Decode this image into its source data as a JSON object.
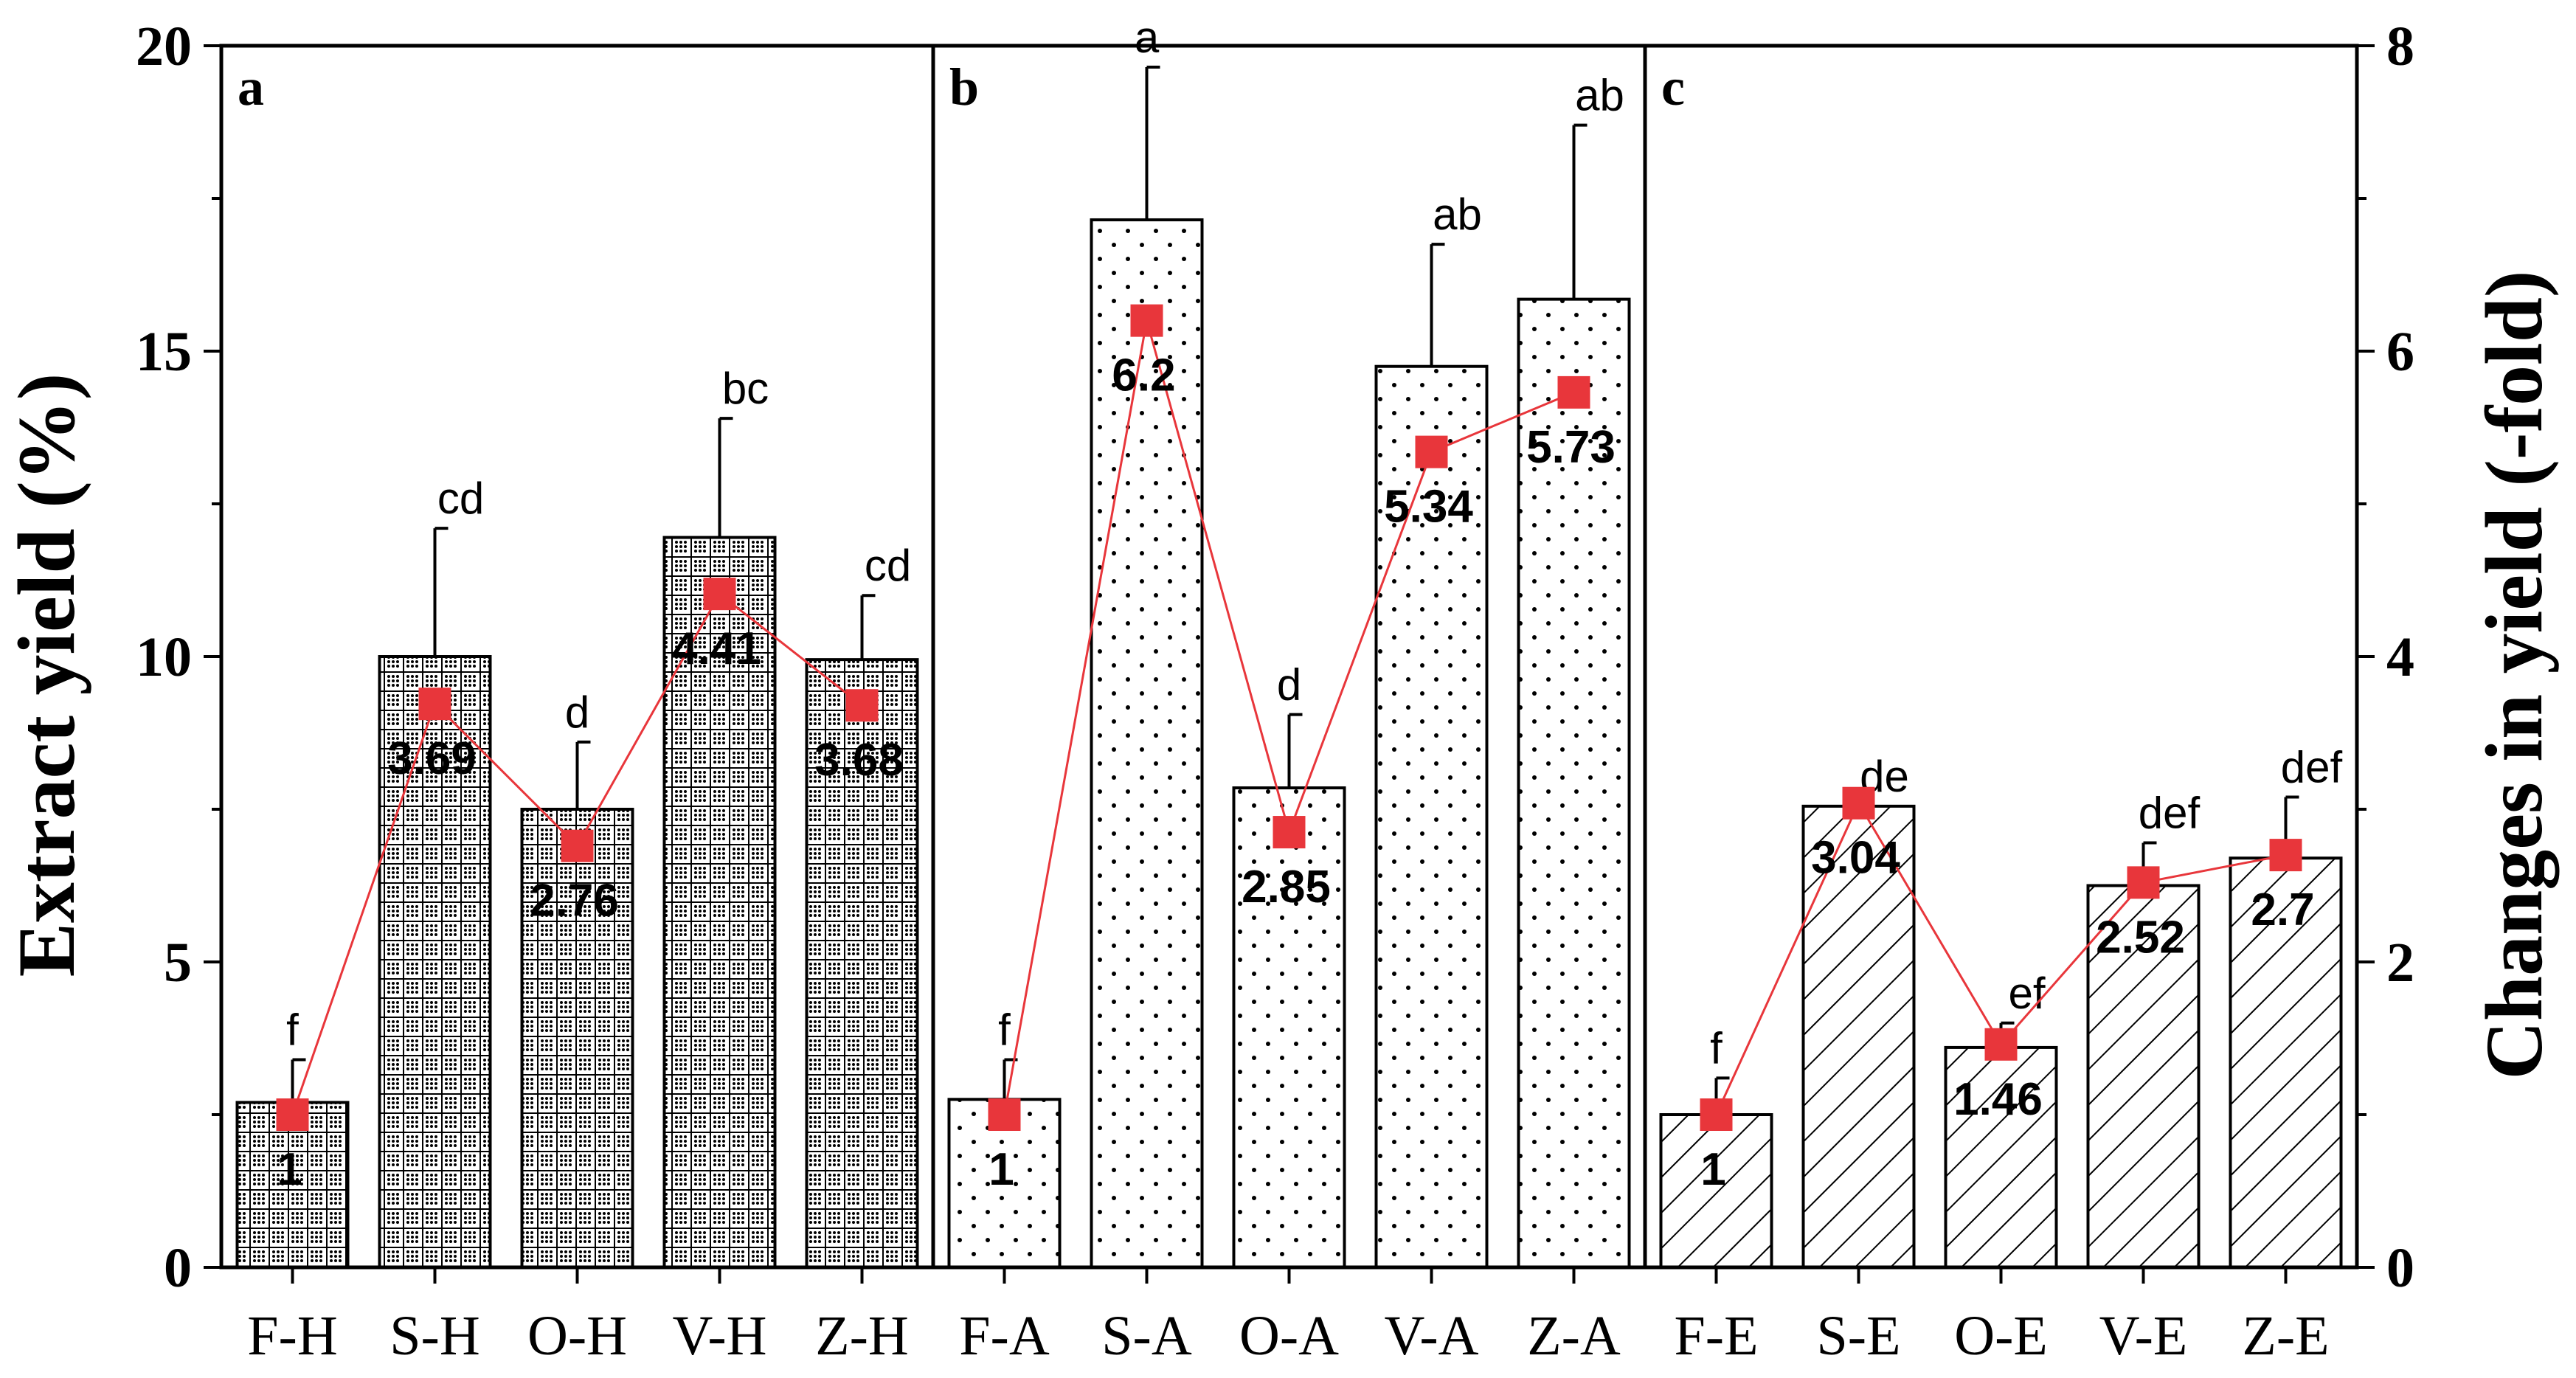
{
  "chart_data": {
    "type": "bar",
    "ylabel_left": "Extract yield (%)",
    "ylabel_right": "Changes in yield (-fold)",
    "ylim_left": [
      0,
      20
    ],
    "ylim_right": [
      0,
      8
    ],
    "yticks_left": [
      "0",
      "5",
      "10",
      "15",
      "20"
    ],
    "yticks_right": [
      "0",
      "2",
      "4",
      "6",
      "8"
    ],
    "panels": [
      {
        "label": "a",
        "pattern": "grid",
        "categories": [
          "F-H",
          "S-H",
          "O-H",
          "V-H",
          "Z-H"
        ],
        "values": [
          2.7,
          10.0,
          7.5,
          11.95,
          9.95
        ],
        "errors": [
          0.7,
          2.1,
          1.1,
          1.95,
          1.05
        ],
        "letters": [
          "f",
          "cd",
          "d",
          "bc",
          "cd"
        ],
        "fold_change": [
          1,
          3.69,
          2.76,
          4.41,
          3.68
        ],
        "fold_labels": [
          "1",
          "3.69",
          "2.76",
          "4.41",
          "3.68"
        ]
      },
      {
        "label": "b",
        "pattern": "dots",
        "categories": [
          "F-A",
          "S-A",
          "O-A",
          "V-A",
          "Z-A"
        ],
        "values": [
          2.75,
          17.15,
          7.85,
          14.75,
          15.85
        ],
        "errors": [
          0.65,
          2.5,
          1.2,
          2.0,
          2.85
        ],
        "letters": [
          "f",
          "a",
          "d",
          "ab",
          "ab"
        ],
        "fold_change": [
          1,
          6.2,
          2.85,
          5.34,
          5.73
        ],
        "fold_labels": [
          "1",
          "6.2",
          "2.85",
          "5.34",
          "5.73"
        ]
      },
      {
        "label": "c",
        "pattern": "hatch",
        "categories": [
          "F-E",
          "S-E",
          "O-E",
          "V-E",
          "Z-E"
        ],
        "values": [
          2.5,
          7.55,
          3.6,
          6.25,
          6.7
        ],
        "errors": [
          0.6,
          0.0,
          0.4,
          0.7,
          1.0
        ],
        "letters": [
          "f",
          "de",
          "ef",
          "def",
          "def"
        ],
        "fold_change": [
          1,
          3.04,
          1.46,
          2.52,
          2.7
        ],
        "fold_labels": [
          "1",
          "3.04",
          "1.46",
          "2.52",
          "2.7"
        ]
      }
    ],
    "colors": {
      "bar_fill": "#ffffff",
      "bar_stroke": "#000000",
      "line": "#e8363b",
      "marker": "#e8363b",
      "axis": "#000000"
    }
  }
}
